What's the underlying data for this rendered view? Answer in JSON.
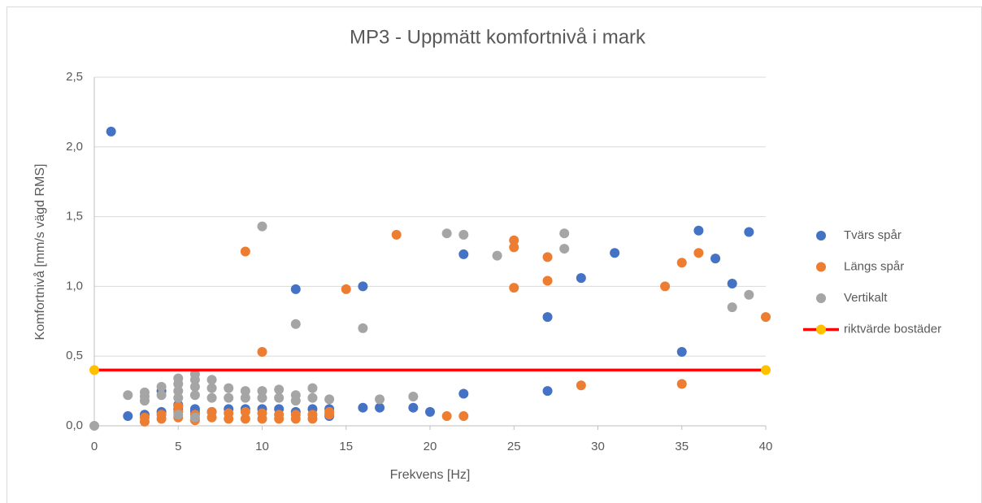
{
  "chart_data": {
    "type": "scatter",
    "title": "MP3 - Uppmätt komfortnivå i mark",
    "xlabel": "Frekvens [Hz]",
    "ylabel": "Komfortnivå [mm/s vägd RMS]",
    "xlim": [
      0,
      40
    ],
    "xticks": [
      0,
      5,
      10,
      15,
      20,
      25,
      30,
      35,
      40
    ],
    "ylim": [
      0,
      2.5
    ],
    "yticks": [
      {
        "value": 0,
        "label": "0,0"
      },
      {
        "value": 0.5,
        "label": "0,5"
      },
      {
        "value": 1,
        "label": "1,0"
      },
      {
        "value": 1.5,
        "label": "1,5"
      },
      {
        "value": 2,
        "label": "2,0"
      },
      {
        "value": 2.5,
        "label": "2,5"
      }
    ],
    "grid": true,
    "legend": "right",
    "series": [
      {
        "name": "Tvärs spår",
        "color": "#4472c4",
        "x": [
          1,
          2,
          3,
          4,
          4,
          5,
          5,
          6,
          6,
          7,
          8,
          9,
          10,
          11,
          12,
          12,
          13,
          14,
          14,
          16,
          16,
          17,
          19,
          20,
          22,
          22,
          27,
          27,
          29,
          31,
          35,
          36,
          37,
          38,
          39
        ],
        "values": [
          2.11,
          0.07,
          0.08,
          0.1,
          0.25,
          0.12,
          0.15,
          0.12,
          0.1,
          0.1,
          0.12,
          0.12,
          0.12,
          0.12,
          0.98,
          0.1,
          0.12,
          0.07,
          0.12,
          1.0,
          0.13,
          0.13,
          0.13,
          0.1,
          1.23,
          0.23,
          0.78,
          0.25,
          1.06,
          1.24,
          0.53,
          1.4,
          1.2,
          1.02,
          1.39
        ]
      },
      {
        "name": "Längs spår",
        "color": "#ed7d31",
        "x": [
          3,
          3,
          4,
          4,
          5,
          5,
          5,
          6,
          6,
          7,
          7,
          8,
          8,
          9,
          9,
          9,
          10,
          10,
          10,
          11,
          11,
          12,
          12,
          13,
          13,
          14,
          14,
          15,
          18,
          21,
          22,
          25,
          25,
          25,
          27,
          27,
          29,
          34,
          35,
          35,
          36,
          40
        ],
        "values": [
          0.03,
          0.06,
          0.05,
          0.08,
          0.06,
          0.1,
          0.14,
          0.04,
          0.08,
          0.06,
          0.1,
          0.05,
          0.09,
          1.25,
          0.05,
          0.1,
          0.53,
          0.05,
          0.09,
          0.05,
          0.08,
          0.05,
          0.08,
          0.05,
          0.08,
          0.08,
          0.1,
          0.98,
          1.37,
          0.07,
          0.07,
          1.33,
          1.28,
          0.99,
          1.21,
          1.04,
          0.29,
          1.0,
          1.17,
          0.3,
          1.24,
          0.78
        ]
      },
      {
        "name": "Vertikalt",
        "color": "#a5a5a5",
        "x": [
          0,
          2,
          3,
          3,
          3,
          4,
          4,
          5,
          5,
          5,
          5,
          5,
          6,
          6,
          6,
          6,
          6,
          7,
          7,
          7,
          8,
          8,
          9,
          9,
          10,
          10,
          10,
          11,
          11,
          12,
          12,
          12,
          13,
          13,
          14,
          16,
          17,
          19,
          21,
          22,
          24,
          28,
          28,
          38,
          39
        ],
        "values": [
          0.0,
          0.22,
          0.18,
          0.21,
          0.24,
          0.22,
          0.28,
          0.2,
          0.25,
          0.3,
          0.34,
          0.08,
          0.22,
          0.28,
          0.33,
          0.37,
          0.06,
          0.2,
          0.27,
          0.33,
          0.2,
          0.27,
          0.2,
          0.25,
          1.43,
          0.2,
          0.25,
          0.2,
          0.26,
          0.73,
          0.18,
          0.22,
          0.2,
          0.27,
          0.19,
          0.7,
          0.19,
          0.21,
          1.38,
          1.37,
          1.22,
          1.38,
          1.27,
          0.85,
          0.94
        ]
      },
      {
        "name": "riktvärde bostäder",
        "color": "#ff0000",
        "marker_color": "#ffc000",
        "line": true,
        "x": [
          0,
          40
        ],
        "values": [
          0.4,
          0.4
        ]
      }
    ]
  }
}
